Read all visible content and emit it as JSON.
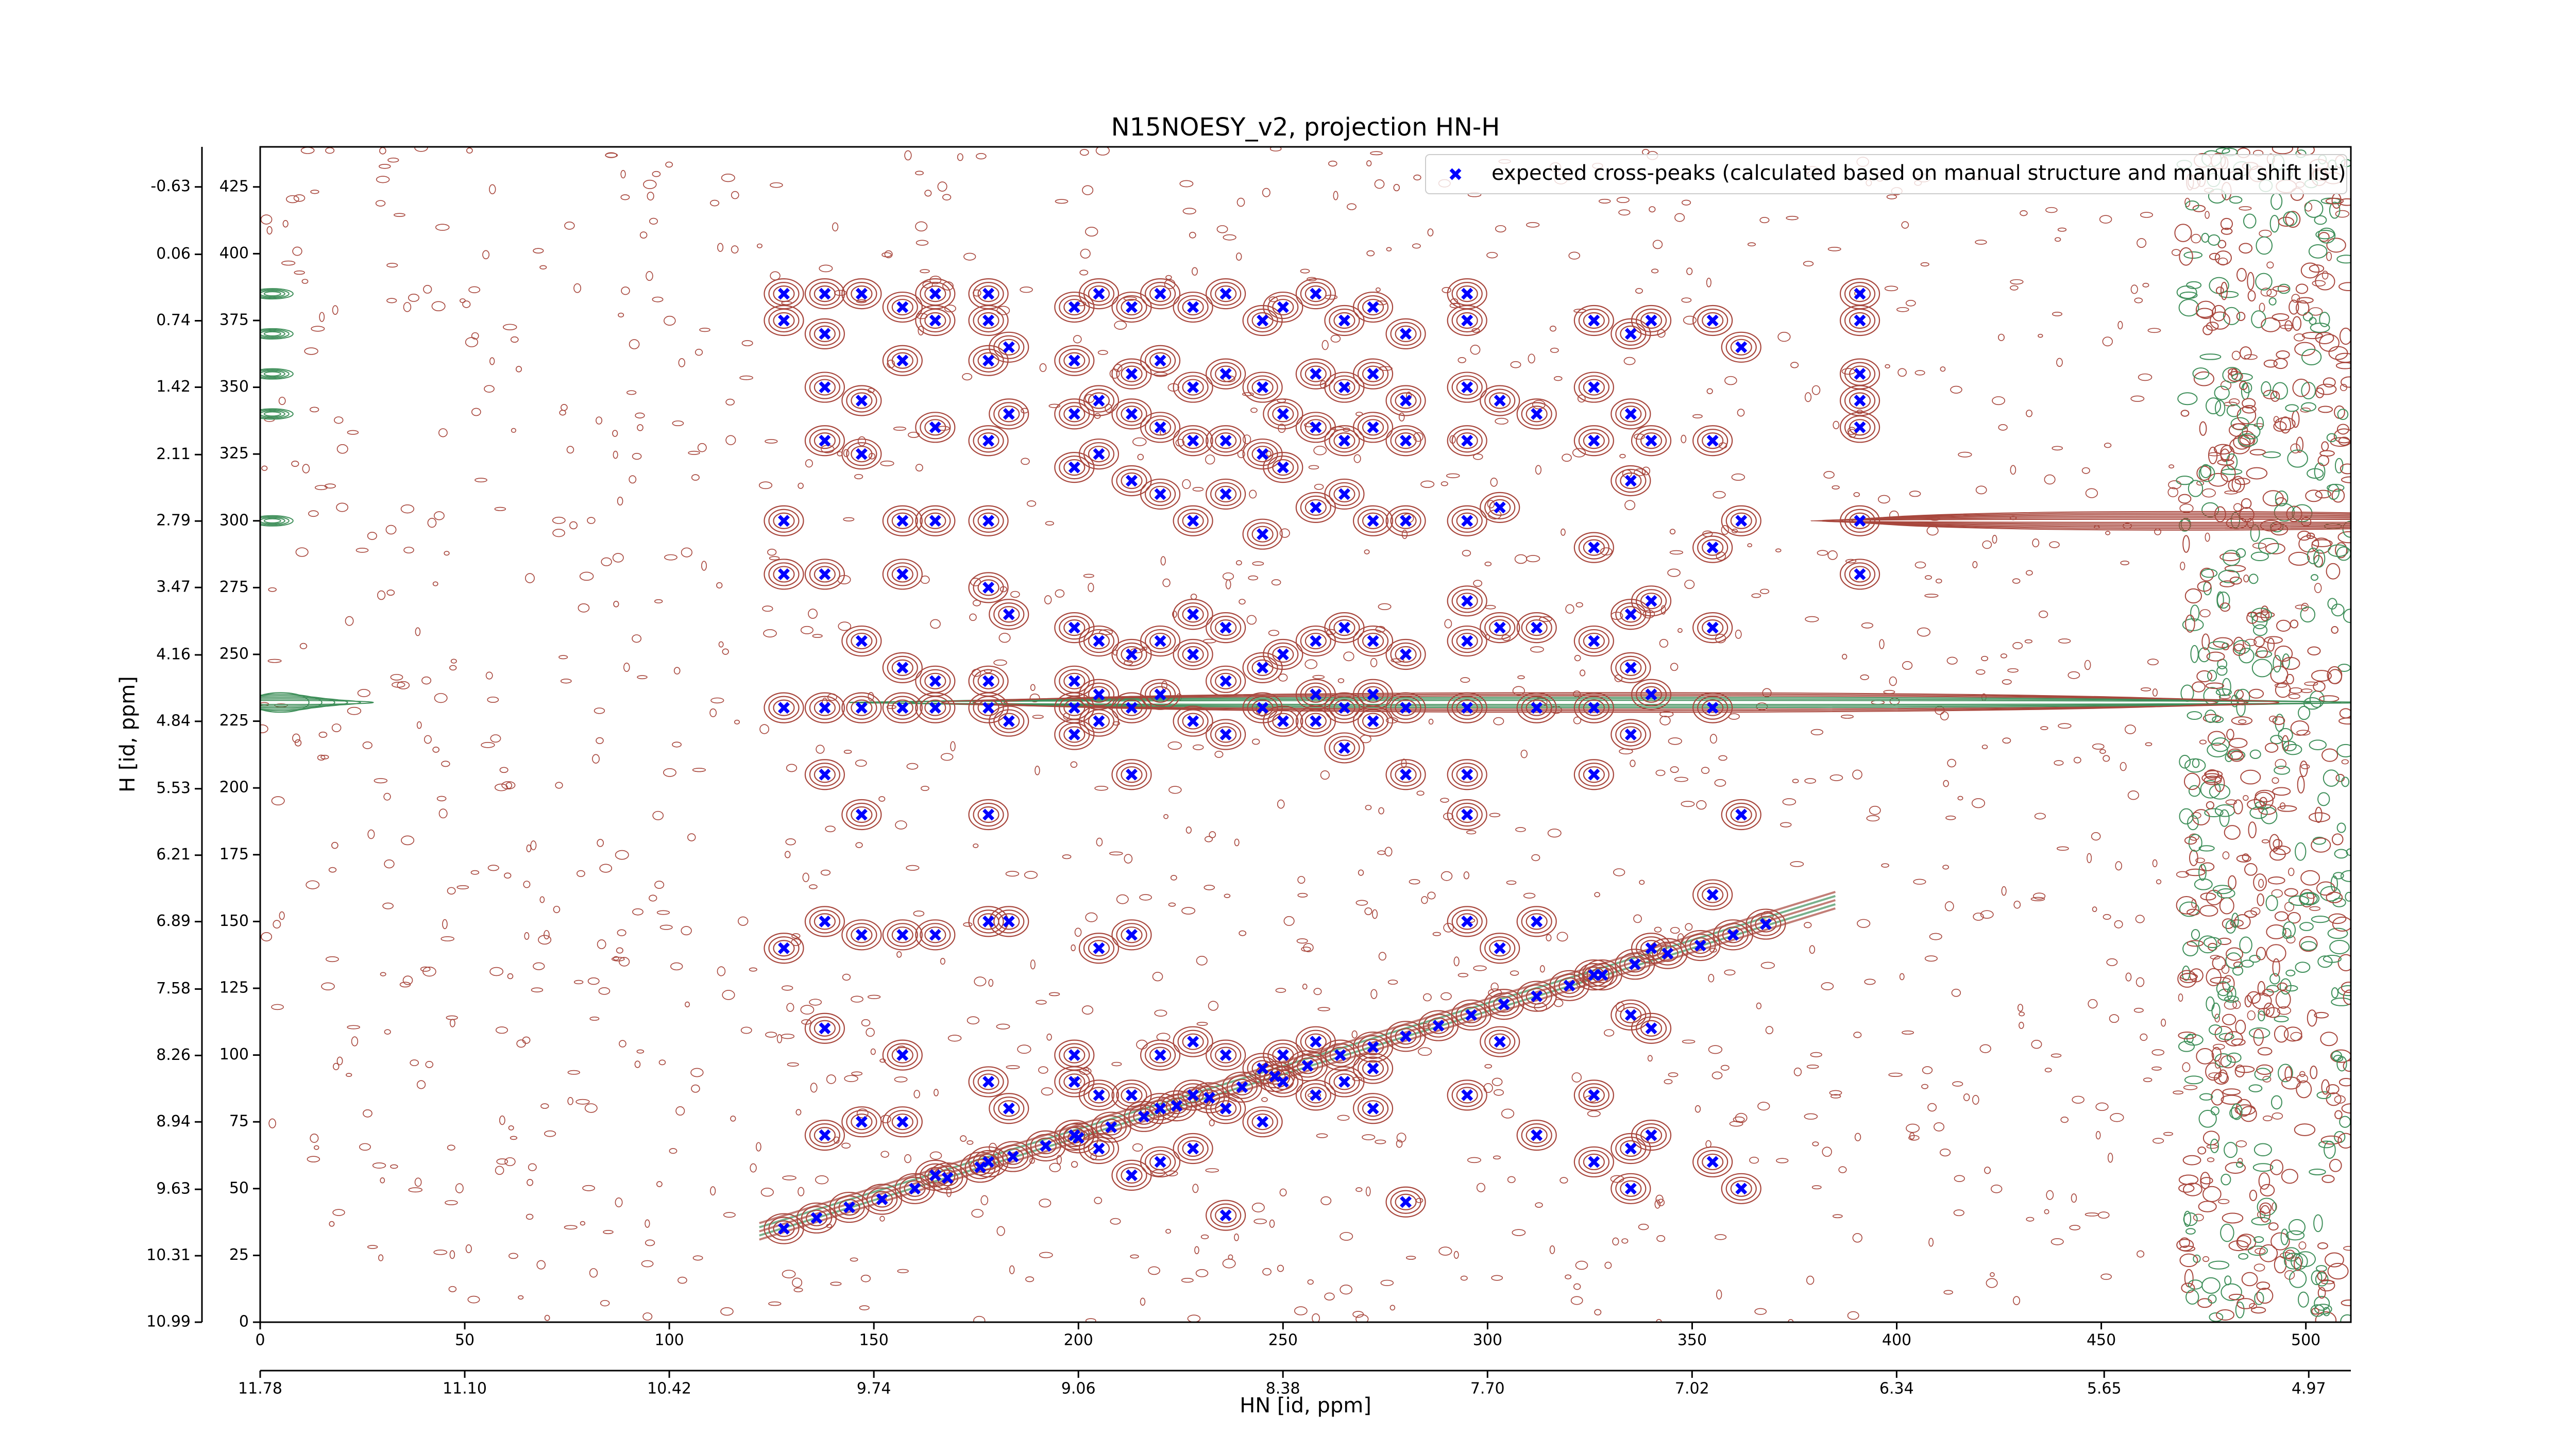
{
  "chart_data": {
    "type": "scatter",
    "title": "N15NOESY_v2, projection HN-H",
    "x_label": "HN [id, ppm]",
    "y_label": "H [id, ppm]",
    "xlim": [
      0,
      511
    ],
    "ylim": [
      0,
      440
    ],
    "xticks": [
      0,
      50,
      100,
      150,
      200,
      250,
      300,
      350,
      400,
      450,
      500
    ],
    "yticks": [
      0,
      25,
      50,
      75,
      100,
      125,
      150,
      175,
      200,
      225,
      250,
      275,
      300,
      325,
      350,
      375,
      400,
      425
    ],
    "x2lim": [
      11.78,
      4.83
    ],
    "x2ticks": [
      11.78,
      {
        "value": 11.1,
        "label": "11.10"
      },
      10.42,
      9.74,
      9.06,
      8.38,
      {
        "value": 7.7,
        "label": "7.70"
      },
      7.02,
      6.34,
      5.65,
      4.97
    ],
    "y2lim": [
      10.99,
      -1.04
    ],
    "y2ticks": [
      10.99,
      10.31,
      9.63,
      8.94,
      8.26,
      7.58,
      6.89,
      6.21,
      5.53,
      4.84,
      4.16,
      3.47,
      2.79,
      2.11,
      1.42,
      0.74,
      0.06,
      -0.63
    ],
    "legend_position": "upper right",
    "series": [
      {
        "name": "expected cross-peaks (calculated based on manual structure and manual shift list)",
        "color": "#0000ff",
        "x": [
          128,
          128,
          128,
          128,
          128,
          128,
          138,
          138,
          138,
          138,
          138,
          138,
          138,
          138,
          138,
          138,
          147,
          147,
          147,
          147,
          147,
          147,
          147,
          147,
          157,
          157,
          157,
          157,
          157,
          157,
          157,
          157,
          157,
          165,
          165,
          165,
          165,
          165,
          165,
          165,
          165,
          178,
          178,
          178,
          178,
          178,
          178,
          178,
          178,
          178,
          178,
          178,
          178,
          183,
          183,
          183,
          183,
          183,
          183,
          199,
          199,
          199,
          199,
          199,
          199,
          199,
          199,
          199,
          199,
          199,
          205,
          205,
          205,
          205,
          205,
          205,
          205,
          205,
          205,
          213,
          213,
          213,
          213,
          213,
          213,
          213,
          213,
          213,
          213,
          220,
          220,
          220,
          220,
          220,
          220,
          220,
          220,
          220,
          228,
          228,
          228,
          228,
          228,
          228,
          228,
          228,
          228,
          228,
          236,
          236,
          236,
          236,
          236,
          236,
          236,
          236,
          236,
          236,
          245,
          245,
          245,
          245,
          245,
          245,
          245,
          245,
          250,
          250,
          250,
          250,
          250,
          250,
          250,
          258,
          258,
          258,
          258,
          258,
          258,
          258,
          258,
          258,
          265,
          265,
          265,
          265,
          265,
          265,
          265,
          265,
          272,
          272,
          272,
          272,
          272,
          272,
          272,
          272,
          272,
          280,
          280,
          280,
          280,
          280,
          280,
          280,
          280,
          295,
          295,
          295,
          295,
          295,
          295,
          295,
          295,
          295,
          295,
          295,
          295,
          303,
          303,
          303,
          303,
          303,
          312,
          312,
          312,
          312,
          312,
          326,
          326,
          326,
          326,
          326,
          326,
          326,
          326,
          326,
          326,
          335,
          335,
          335,
          335,
          335,
          335,
          335,
          335,
          335,
          340,
          340,
          340,
          340,
          340,
          340,
          340,
          355,
          355,
          355,
          355,
          355,
          355,
          355,
          362,
          362,
          362,
          362,
          391,
          391,
          391,
          391,
          391,
          391,
          391,
          128,
          136,
          144,
          152,
          160,
          168,
          176,
          184,
          192,
          200,
          208,
          216,
          224,
          232,
          240,
          248,
          256,
          264,
          272,
          280,
          288,
          296,
          304,
          312,
          320,
          328,
          336,
          344,
          352,
          360,
          368
        ],
        "values": [
          385,
          375,
          300,
          280,
          230,
          140,
          385,
          370,
          350,
          330,
          280,
          230,
          205,
          150,
          110,
          70,
          385,
          345,
          325,
          255,
          230,
          190,
          145,
          75,
          380,
          360,
          300,
          280,
          245,
          230,
          145,
          100,
          75,
          385,
          375,
          335,
          300,
          240,
          230,
          145,
          55,
          385,
          375,
          360,
          330,
          300,
          275,
          240,
          230,
          190,
          150,
          90,
          60,
          365,
          340,
          265,
          225,
          150,
          80,
          380,
          360,
          340,
          320,
          260,
          240,
          230,
          220,
          100,
          90,
          70,
          385,
          345,
          325,
          255,
          235,
          225,
          140,
          85,
          65,
          380,
          355,
          340,
          315,
          250,
          230,
          205,
          145,
          85,
          55,
          385,
          360,
          335,
          310,
          255,
          235,
          100,
          80,
          60,
          380,
          350,
          330,
          300,
          265,
          250,
          225,
          105,
          85,
          65,
          385,
          355,
          330,
          310,
          260,
          240,
          220,
          100,
          80,
          40,
          375,
          350,
          325,
          295,
          245,
          230,
          95,
          75,
          380,
          340,
          320,
          250,
          225,
          100,
          90,
          385,
          355,
          335,
          305,
          255,
          235,
          225,
          105,
          85,
          375,
          350,
          330,
          310,
          260,
          230,
          215,
          90,
          380,
          355,
          335,
          300,
          255,
          235,
          225,
          95,
          80,
          370,
          345,
          330,
          300,
          250,
          230,
          205,
          45,
          385,
          375,
          350,
          330,
          300,
          270,
          255,
          230,
          205,
          190,
          150,
          85,
          345,
          305,
          260,
          140,
          105,
          340,
          260,
          230,
          150,
          70,
          375,
          350,
          330,
          290,
          255,
          230,
          205,
          130,
          85,
          60,
          370,
          340,
          315,
          265,
          245,
          220,
          115,
          65,
          50,
          375,
          330,
          270,
          235,
          140,
          110,
          70,
          375,
          330,
          290,
          260,
          230,
          160,
          60,
          365,
          300,
          190,
          50,
          385,
          375,
          355,
          345,
          335,
          300,
          280,
          35,
          39,
          43,
          46,
          50,
          54,
          58,
          62,
          66,
          69,
          73,
          77,
          81,
          84,
          88,
          92,
          96,
          100,
          103,
          107,
          111,
          115,
          119,
          122,
          126,
          130,
          134,
          138,
          141,
          145,
          149
        ]
      }
    ]
  }
}
